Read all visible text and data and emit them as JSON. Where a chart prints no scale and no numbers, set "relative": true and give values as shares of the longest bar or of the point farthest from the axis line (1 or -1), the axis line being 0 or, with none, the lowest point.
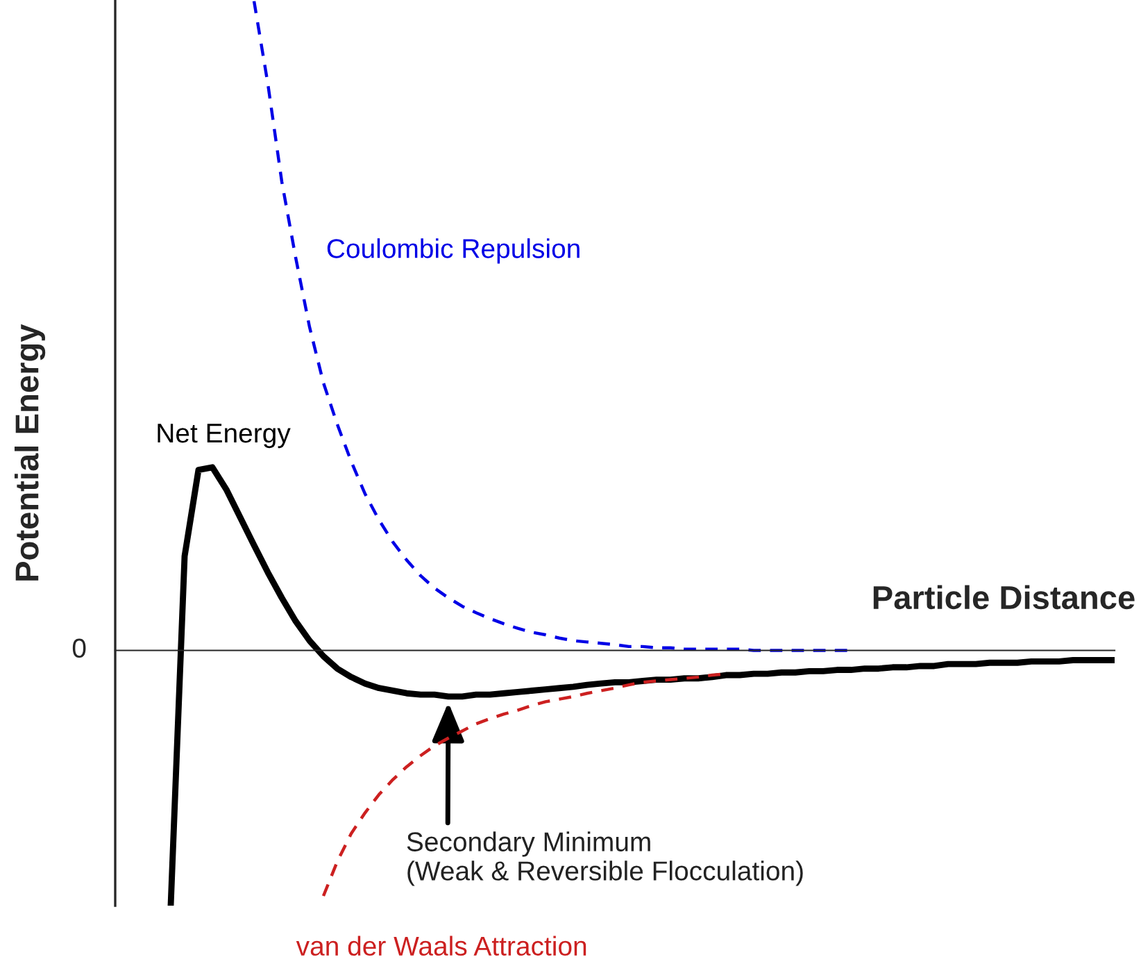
{
  "chart_data": {
    "type": "line",
    "relative": true,
    "xlabel": "Particle Distance",
    "ylabel": "Potential Energy",
    "legend": false,
    "categories": [
      null,
      null,
      null,
      null,
      null,
      null,
      null,
      null,
      null,
      null,
      null,
      null,
      null,
      null,
      null,
      null,
      null,
      null,
      null,
      null,
      null,
      null,
      null,
      null,
      null,
      null,
      null,
      null,
      null,
      null,
      null,
      null,
      null,
      null,
      null,
      null,
      null,
      null,
      null,
      null,
      null,
      null,
      null,
      null,
      null,
      null,
      null,
      null,
      null,
      null,
      null,
      null,
      null,
      null,
      null,
      null,
      null,
      null,
      null,
      null,
      null,
      null,
      null,
      null,
      null,
      null,
      null,
      null,
      null,
      null,
      null,
      null,
      null
    ],
    "series": [
      {
        "name": "Net Energy",
        "color": "#000000",
        "line_style": "solid",
        "values": [
          null,
          null,
          null,
          null,
          -0.393,
          0.145,
          0.278,
          0.282,
          0.248,
          0.205,
          0.162,
          0.12,
          0.081,
          0.045,
          0.015,
          -0.009,
          -0.028,
          -0.041,
          -0.051,
          -0.058,
          -0.062,
          -0.066,
          -0.068,
          -0.068,
          -0.071,
          -0.071,
          -0.068,
          -0.068,
          -0.066,
          -0.064,
          -0.062,
          -0.06,
          -0.058,
          -0.056,
          -0.053,
          -0.051,
          -0.049,
          -0.049,
          -0.047,
          -0.045,
          -0.045,
          -0.043,
          -0.043,
          -0.041,
          -0.038,
          -0.038,
          -0.036,
          -0.036,
          -0.034,
          -0.034,
          -0.032,
          -0.032,
          -0.03,
          -0.03,
          -0.028,
          -0.028,
          -0.026,
          -0.026,
          -0.024,
          -0.024,
          -0.021,
          -0.021,
          -0.021,
          -0.019,
          -0.019,
          -0.019,
          -0.017,
          -0.017,
          -0.017,
          -0.015,
          -0.015,
          -0.015,
          -0.015
        ]
      },
      {
        "name": "Coulombic Repulsion",
        "color": "#0000e6",
        "line_style": "dashed",
        "values": [
          null,
          null,
          null,
          null,
          null,
          null,
          null,
          null,
          null,
          null,
          1.0,
          0.872,
          0.722,
          0.605,
          0.498,
          0.412,
          0.348,
          0.291,
          0.241,
          0.201,
          0.167,
          0.139,
          0.115,
          0.096,
          0.081,
          0.068,
          0.058,
          0.049,
          0.041,
          0.034,
          0.028,
          0.024,
          0.019,
          0.015,
          0.013,
          0.011,
          0.009,
          0.006,
          0.006,
          0.004,
          0.004,
          0.002,
          0.002,
          0.002,
          0.002,
          0.002,
          0,
          0,
          0,
          0,
          0,
          0,
          0,
          0,
          null,
          null,
          null,
          null,
          null,
          null,
          null,
          null,
          null,
          null,
          null,
          null,
          null,
          null,
          null,
          null,
          null,
          null,
          null
        ]
      },
      {
        "name": "van der Waals Attraction",
        "color": "#cc2020",
        "line_style": "dashed",
        "values": [
          null,
          null,
          null,
          null,
          null,
          null,
          null,
          null,
          null,
          null,
          null,
          null,
          null,
          null,
          null,
          -0.378,
          -0.325,
          -0.282,
          -0.25,
          -0.222,
          -0.199,
          -0.179,
          -0.162,
          -0.147,
          -0.135,
          -0.124,
          -0.113,
          -0.105,
          -0.098,
          -0.092,
          -0.085,
          -0.079,
          -0.075,
          -0.071,
          -0.066,
          -0.062,
          -0.058,
          -0.053,
          -0.049,
          -0.047,
          -0.045,
          -0.043,
          -0.041,
          -0.038,
          -0.036,
          null,
          null,
          null,
          null,
          null,
          null,
          null,
          null,
          null,
          null,
          null,
          null,
          null,
          null,
          null,
          null,
          null,
          null,
          null,
          null,
          null,
          null,
          null,
          null,
          null,
          null,
          null,
          null
        ]
      }
    ],
    "annotations": [
      "0",
      "Secondary Minimum\n(Weak & Reversible Flocculation)"
    ]
  }
}
